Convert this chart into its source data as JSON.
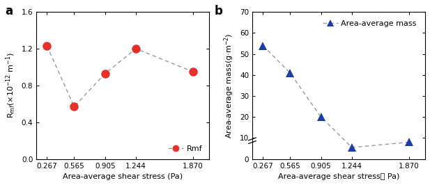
{
  "x_values": [
    0.267,
    0.565,
    0.905,
    1.244,
    1.87
  ],
  "x_labels": [
    "0.267",
    "0.565",
    "0.905",
    "1.244",
    "1.870"
  ],
  "rmf_values": [
    1.23,
    0.57,
    0.93,
    1.2,
    0.95
  ],
  "mass_values": [
    54.0,
    41.0,
    20.0,
    5.5,
    8.0
  ],
  "rmf_ylim": [
    0,
    1.6
  ],
  "rmf_yticks": [
    0.0,
    0.4,
    0.8,
    1.2,
    1.6
  ],
  "mass_ylim": [
    0,
    70
  ],
  "mass_yticks": [
    0,
    10,
    20,
    30,
    40,
    50,
    60,
    70
  ],
  "color_rmf": "#e8302a",
  "color_mass": "#1a3da8",
  "line_color": "#999999",
  "xlabel_a": "Area-average shear stress (Pa)",
  "xlabel_b": "Area-average shear stress（ Pa)",
  "ylabel_a": "R$_{mf}$(×10$^{-12}$ m$^{-1}$)",
  "ylabel_b": "Area-average mass(g·m$^{-2}$)",
  "legend_a": "Rmf",
  "legend_b": "Area-average mass",
  "label_a": "a",
  "label_b": "b"
}
